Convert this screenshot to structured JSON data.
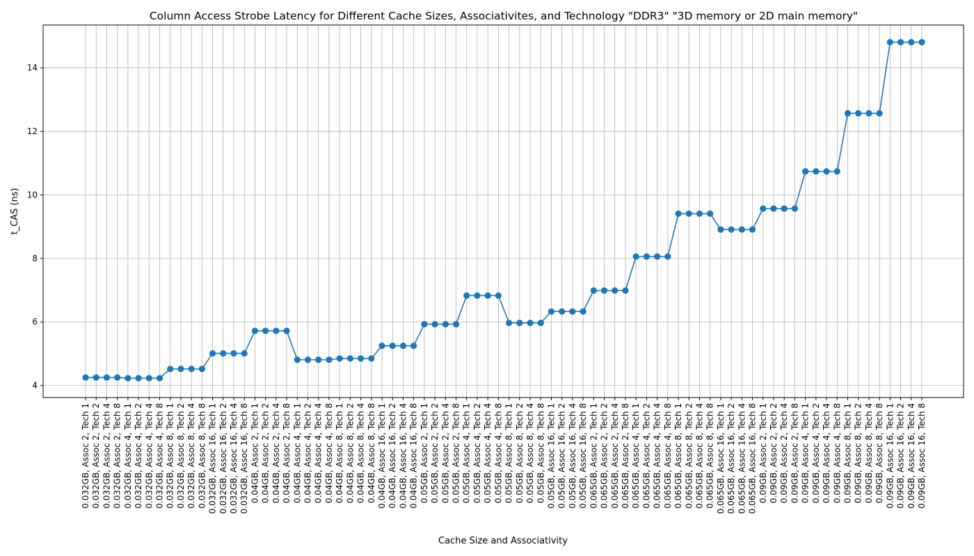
{
  "chart_data": {
    "type": "line",
    "title": "Column Access Strobe Latency for Different Cache Sizes, Associativites, and Technology \"DDR3\" \"3D memory or 2D main memory\"",
    "xlabel": "Cache Size and Associativity",
    "ylabel": "t_CAS (ns)",
    "ylim": [
      3.62,
      15.35
    ],
    "yticks": [
      4,
      6,
      8,
      10,
      12,
      14
    ],
    "grid": true,
    "color": "#1f77b4",
    "categories": [
      "0.032GB, Assoc 2, Tech 1",
      "0.032GB, Assoc 2, Tech 2",
      "0.032GB, Assoc 2, Tech 4",
      "0.032GB, Assoc 2, Tech 8",
      "0.032GB, Assoc 4, Tech 1",
      "0.032GB, Assoc 4, Tech 2",
      "0.032GB, Assoc 4, Tech 4",
      "0.032GB, Assoc 4, Tech 8",
      "0.032GB, Assoc 8, Tech 1",
      "0.032GB, Assoc 8, Tech 2",
      "0.032GB, Assoc 8, Tech 4",
      "0.032GB, Assoc 8, Tech 8",
      "0.032GB, Assoc 16, Tech 1",
      "0.032GB, Assoc 16, Tech 2",
      "0.032GB, Assoc 16, Tech 4",
      "0.032GB, Assoc 16, Tech 8",
      "0.04GB, Assoc 2, Tech 1",
      "0.04GB, Assoc 2, Tech 2",
      "0.04GB, Assoc 2, Tech 4",
      "0.04GB, Assoc 2, Tech 8",
      "0.04GB, Assoc 4, Tech 1",
      "0.04GB, Assoc 4, Tech 2",
      "0.04GB, Assoc 4, Tech 4",
      "0.04GB, Assoc 4, Tech 8",
      "0.04GB, Assoc 8, Tech 1",
      "0.04GB, Assoc 8, Tech 2",
      "0.04GB, Assoc 8, Tech 4",
      "0.04GB, Assoc 8, Tech 8",
      "0.04GB, Assoc 16, Tech 1",
      "0.04GB, Assoc 16, Tech 2",
      "0.04GB, Assoc 16, Tech 4",
      "0.04GB, Assoc 16, Tech 8",
      "0.05GB, Assoc 2, Tech 1",
      "0.05GB, Assoc 2, Tech 2",
      "0.05GB, Assoc 2, Tech 4",
      "0.05GB, Assoc 2, Tech 8",
      "0.05GB, Assoc 4, Tech 1",
      "0.05GB, Assoc 4, Tech 2",
      "0.05GB, Assoc 4, Tech 4",
      "0.05GB, Assoc 4, Tech 8",
      "0.05GB, Assoc 8, Tech 1",
      "0.05GB, Assoc 8, Tech 2",
      "0.05GB, Assoc 8, Tech 4",
      "0.05GB, Assoc 8, Tech 8",
      "0.05GB, Assoc 16, Tech 1",
      "0.05GB, Assoc 16, Tech 2",
      "0.05GB, Assoc 16, Tech 4",
      "0.05GB, Assoc 16, Tech 8",
      "0.065GB, Assoc 2, Tech 1",
      "0.065GB, Assoc 2, Tech 2",
      "0.065GB, Assoc 2, Tech 4",
      "0.065GB, Assoc 2, Tech 8",
      "0.065GB, Assoc 4, Tech 1",
      "0.065GB, Assoc 4, Tech 2",
      "0.065GB, Assoc 4, Tech 4",
      "0.065GB, Assoc 4, Tech 8",
      "0.065GB, Assoc 8, Tech 1",
      "0.065GB, Assoc 8, Tech 2",
      "0.065GB, Assoc 8, Tech 4",
      "0.065GB, Assoc 8, Tech 8",
      "0.065GB, Assoc 16, Tech 1",
      "0.065GB, Assoc 16, Tech 2",
      "0.065GB, Assoc 16, Tech 4",
      "0.065GB, Assoc 16, Tech 8",
      "0.09GB, Assoc 2, Tech 1",
      "0.09GB, Assoc 2, Tech 2",
      "0.09GB, Assoc 2, Tech 4",
      "0.09GB, Assoc 2, Tech 8",
      "0.09GB, Assoc 4, Tech 1",
      "0.09GB, Assoc 4, Tech 2",
      "0.09GB, Assoc 4, Tech 4",
      "0.09GB, Assoc 4, Tech 8",
      "0.09GB, Assoc 8, Tech 1",
      "0.09GB, Assoc 8, Tech 2",
      "0.09GB, Assoc 8, Tech 4",
      "0.09GB, Assoc 8, Tech 8",
      "0.09GB, Assoc 16, Tech 1",
      "0.09GB, Assoc 16, Tech 2",
      "0.09GB, Assoc 16, Tech 4",
      "0.09GB, Assoc 16, Tech 8"
    ],
    "values": [
      4.25,
      4.25,
      4.25,
      4.25,
      4.23,
      4.23,
      4.23,
      4.23,
      4.52,
      4.52,
      4.52,
      4.52,
      5.01,
      5.01,
      5.01,
      5.01,
      5.72,
      5.72,
      5.72,
      5.72,
      4.81,
      4.81,
      4.81,
      4.81,
      4.85,
      4.85,
      4.85,
      4.85,
      5.25,
      5.25,
      5.25,
      5.25,
      5.93,
      5.93,
      5.93,
      5.93,
      6.83,
      6.83,
      6.83,
      6.83,
      5.97,
      5.97,
      5.97,
      5.97,
      6.33,
      6.33,
      6.33,
      6.33,
      6.99,
      6.99,
      6.99,
      6.99,
      8.06,
      8.06,
      8.06,
      8.06,
      9.41,
      9.41,
      9.41,
      9.41,
      8.91,
      8.91,
      8.91,
      8.91,
      9.57,
      9.57,
      9.57,
      9.57,
      10.74,
      10.74,
      10.74,
      10.74,
      12.57,
      12.57,
      12.57,
      12.57,
      14.81,
      14.81,
      14.81,
      14.81
    ]
  }
}
